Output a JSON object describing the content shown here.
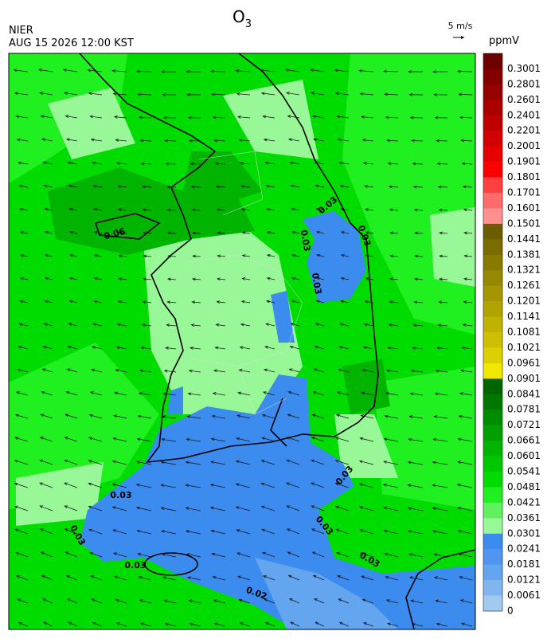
{
  "header": {
    "title": {
      "main": "O",
      "sub": "3"
    },
    "agency": "NIER",
    "datetime": "AUG 15 2026 12:00 KST",
    "wind_scale": "5 m/s"
  },
  "colorbar": {
    "unit": "ppmV",
    "levels": [
      0.3001,
      0.2801,
      0.2601,
      0.2401,
      0.2201,
      0.2001,
      0.1901,
      0.1801,
      0.1701,
      0.1601,
      0.1501,
      0.1441,
      0.1381,
      0.1321,
      0.1261,
      0.1201,
      0.1141,
      0.1081,
      0.1021,
      0.0961,
      0.0901,
      0.0841,
      0.0781,
      0.0721,
      0.0661,
      0.0601,
      0.0541,
      0.0481,
      0.0421,
      0.0361,
      0.0301,
      0.0241,
      0.0181,
      0.0121,
      0.0061,
      0
    ],
    "colors": [
      "#6e0000",
      "#820000",
      "#960000",
      "#aa0000",
      "#be0000",
      "#d20000",
      "#e60000",
      "#ff0000",
      "#ff4040",
      "#ff6a6a",
      "#ff9090",
      "#6b5e00",
      "#7a6c00",
      "#887a00",
      "#968800",
      "#a49600",
      "#b2a400",
      "#c0b200",
      "#cec000",
      "#dcd000",
      "#f0e800",
      "#006400",
      "#007800",
      "#008c00",
      "#00a000",
      "#00b400",
      "#00c800",
      "#00dc00",
      "#20f020",
      "#60f060",
      "#98f898",
      "#3c8cf0",
      "#5096f0",
      "#64a5f0",
      "#80b5f0",
      "#a0caf0"
    ]
  },
  "map": {
    "contour_labels": [
      "0.06",
      "0.03",
      "0.03",
      "0.03",
      "0.03",
      "0.03",
      "0.03",
      "0.03",
      "0.02",
      "0.03",
      "0.03",
      "0.03"
    ]
  }
}
